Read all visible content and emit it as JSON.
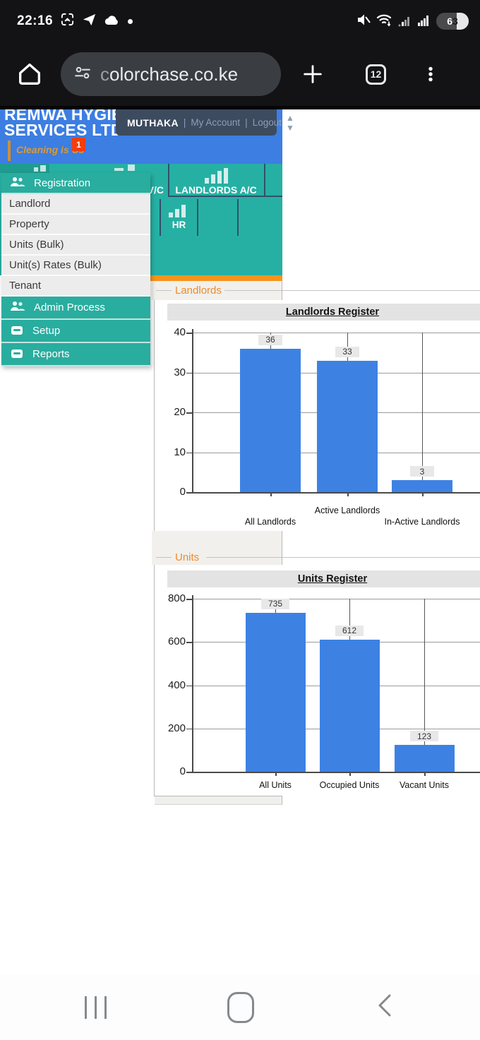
{
  "status_bar": {
    "time": "22:16",
    "battery_percent": "63"
  },
  "browser_bar": {
    "url": "colorchase.co.ke",
    "tab_count": "12"
  },
  "header": {
    "company_line1": "REMWA HYGIE",
    "company_line2": "SERVICES LTD",
    "user_name": "MUTHAKA",
    "separator": "|",
    "my_account": "My Account",
    "logout": "Logout",
    "tagline": "Cleaning is Us",
    "notification_count": "1"
  },
  "tiles": {
    "partial_label": "V/C",
    "landlords_account": "LANDLORDS A/C",
    "hr": "HR"
  },
  "menu": {
    "registration_header": "Registration",
    "items": [
      "Landlord",
      "Property",
      "Units (Bulk)",
      "Unit(s) Rates (Bulk)",
      "Tenant"
    ],
    "admin_process": "Admin Process",
    "setup": "Setup",
    "reports": "Reports"
  },
  "sections": {
    "landlords_legend": "Landlords",
    "units_legend": "Units"
  },
  "chart_data": [
    {
      "type": "bar",
      "title": "Landlords Register",
      "categories": [
        "All Landlords",
        "Active Landlords",
        "In-Active Landlords"
      ],
      "values": [
        36,
        33,
        3
      ],
      "value_labels": [
        "36",
        "33",
        "3"
      ],
      "ylim": [
        0,
        40
      ],
      "yticks": [
        0,
        10,
        20,
        30,
        40
      ],
      "bar_color": "#3d82e3",
      "grid": true,
      "legend_position": "none"
    },
    {
      "type": "bar",
      "title": "Units Register",
      "categories": [
        "All Units",
        "Occupied Units",
        "Vacant Units"
      ],
      "values": [
        735,
        612,
        123
      ],
      "value_labels": [
        "735",
        "612",
        "123"
      ],
      "ylim": [
        0,
        800
      ],
      "yticks": [
        0,
        200,
        400,
        600,
        800
      ],
      "bar_color": "#3d82e3",
      "grid": true,
      "legend_position": "none"
    }
  ],
  "colors": {
    "header_blue": "#3c7ee2",
    "accent_teal": "#26b0a3",
    "orange": "#f7941d",
    "bar_blue": "#3d82e3",
    "badge_red": "#f43d0e"
  }
}
